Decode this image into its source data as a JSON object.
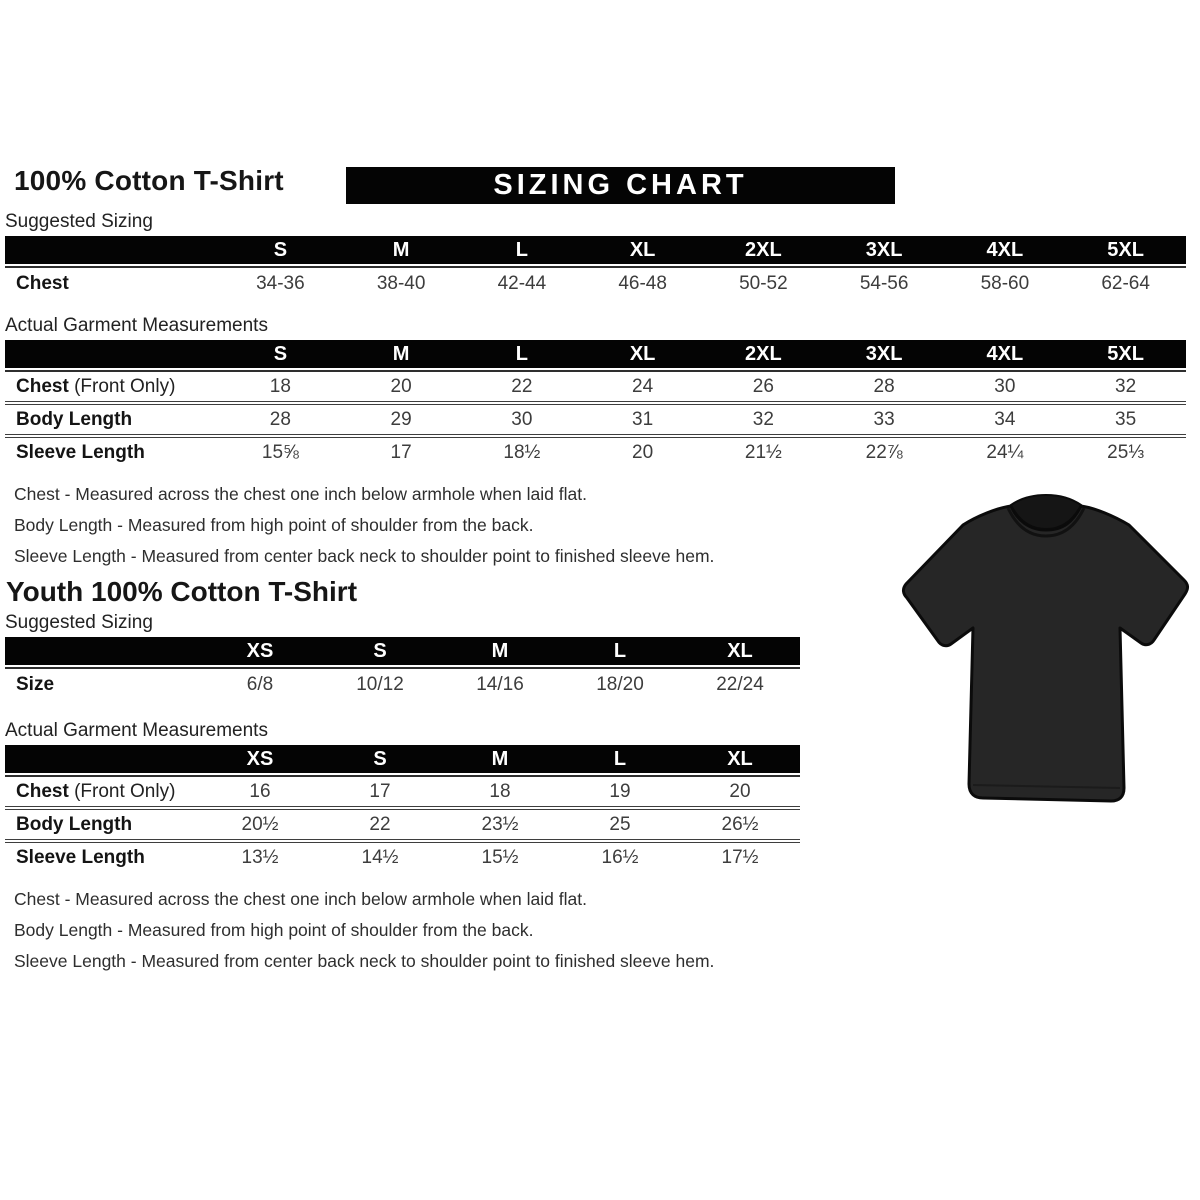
{
  "page": {
    "title": "100% Cotton T-Shirt",
    "banner": "SIZING CHART",
    "youth_title": "Youth 100% Cotton T-Shirt"
  },
  "labels": {
    "suggested": "Suggested Sizing",
    "actual": "Actual Garment Measurements"
  },
  "adult": {
    "suggested": {
      "columns": [
        "S",
        "M",
        "L",
        "XL",
        "2XL",
        "3XL",
        "4XL",
        "5XL"
      ],
      "rows": [
        {
          "label": "Chest",
          "values": [
            "34-36",
            "38-40",
            "42-44",
            "46-48",
            "50-52",
            "54-56",
            "58-60",
            "62-64"
          ]
        }
      ]
    },
    "actual": {
      "columns": [
        "S",
        "M",
        "L",
        "XL",
        "2XL",
        "3XL",
        "4XL",
        "5XL"
      ],
      "rows": [
        {
          "label": "Chest",
          "suffix": "(Front Only)",
          "values": [
            "18",
            "20",
            "22",
            "24",
            "26",
            "28",
            "30",
            "32"
          ]
        },
        {
          "label": "Body Length",
          "values": [
            "28",
            "29",
            "30",
            "31",
            "32",
            "33",
            "34",
            "35"
          ]
        },
        {
          "label": "Sleeve Length",
          "values": [
            "15⅝",
            "17",
            "18½",
            "20",
            "21½",
            "22⅞",
            "24¼",
            "25⅓"
          ]
        }
      ]
    }
  },
  "youth": {
    "suggested": {
      "columns": [
        "XS",
        "S",
        "M",
        "L",
        "XL"
      ],
      "rows": [
        {
          "label": "Size",
          "values": [
            "6/8",
            "10/12",
            "14/16",
            "18/20",
            "22/24"
          ]
        }
      ]
    },
    "actual": {
      "columns": [
        "XS",
        "S",
        "M",
        "L",
        "XL"
      ],
      "rows": [
        {
          "label": "Chest",
          "suffix": "(Front Only)",
          "values": [
            "16",
            "17",
            "18",
            "19",
            "20"
          ]
        },
        {
          "label": "Body Length",
          "values": [
            "20½",
            "22",
            "23½",
            "25",
            "26½"
          ]
        },
        {
          "label": "Sleeve Length",
          "values": [
            "13½",
            "14½",
            "15½",
            "16½",
            "17½"
          ]
        }
      ]
    }
  },
  "notes": {
    "chest": "Chest - Measured across the chest one inch below armhole when laid flat.",
    "body": "Body Length - Measured from high point of shoulder from the back.",
    "sleeve": "Sleeve Length - Measured from center back neck to shoulder point to finished sleeve hem."
  },
  "images": {
    "tshirt": "black-short-sleeve-t-shirt"
  },
  "colors": {
    "header_bar": "#040404",
    "header_text": "#ffffff",
    "body_text": "#2e2e2e",
    "tshirt_fill": "#262626"
  }
}
